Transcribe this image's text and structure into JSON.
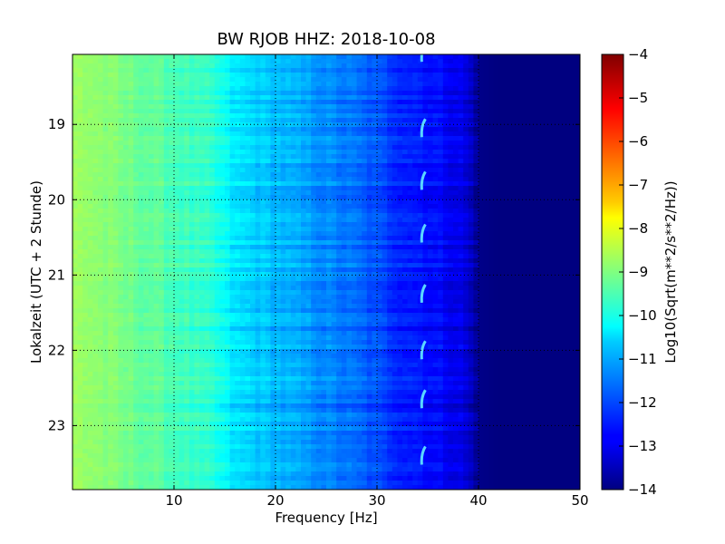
{
  "chart_data": {
    "type": "heatmap",
    "title": "BW RJOB HHZ: 2018-10-08",
    "xlabel": "Frequency [Hz]",
    "ylabel": "Lokalzeit (UTC + 2 Stunde)",
    "xlim": [
      0,
      50
    ],
    "ylim_hours": [
      18.07,
      23.85
    ],
    "y_inverted": true,
    "x_ticks": [
      10,
      20,
      30,
      40,
      50
    ],
    "y_ticks": [
      19,
      20,
      21,
      22,
      23
    ],
    "grid": true,
    "colormap": "jet",
    "colorbar": {
      "label": "Log10(Sqrt(m**2/s**2/Hz))",
      "range": [
        -14,
        -4
      ],
      "ticks": [
        -4,
        -5,
        -6,
        -7,
        -8,
        -9,
        -10,
        -11,
        -12,
        -13,
        -14
      ]
    },
    "psd_profile": {
      "frequency_hz": [
        0,
        2,
        5,
        8,
        10,
        12,
        14,
        15,
        16,
        18,
        20,
        22,
        25,
        28,
        30,
        32,
        34,
        36,
        38,
        39,
        40,
        42,
        45,
        50
      ],
      "log_psd": [
        -8.7,
        -8.8,
        -9.1,
        -9.3,
        -9.5,
        -9.7,
        -9.9,
        -10.2,
        -10.5,
        -10.7,
        -10.9,
        -11.1,
        -11.4,
        -11.7,
        -12.0,
        -12.3,
        -12.5,
        -12.7,
        -12.9,
        -13.2,
        -13.9,
        -14.0,
        -14.0,
        -14.0
      ]
    },
    "recurring_feature": {
      "frequency_hz": 34.5,
      "times_hours": [
        18.0,
        19.0,
        19.7,
        20.4,
        21.2,
        21.95,
        22.6,
        23.35
      ]
    }
  }
}
